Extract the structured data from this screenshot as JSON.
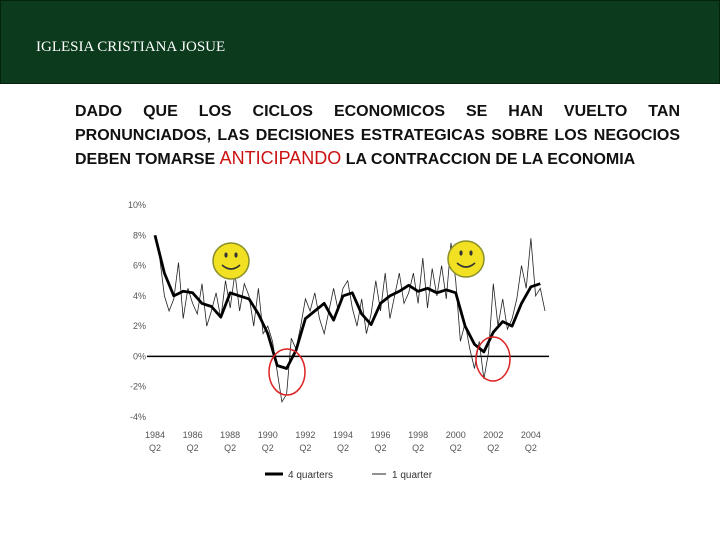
{
  "header": {
    "title": "IGLESIA CRISTIANA JOSUE",
    "bg_color": "#0b3a1c"
  },
  "body_text": {
    "part1": "DADO QUE LOS CICLOS ECONOMICOS SE HAN VUELTO TAN PRONUNCIADOS, LAS DECISIONES ESTRATEGICAS SOBRE LOS NEGOCIOS DEBEN TOMARSE ",
    "highlight": "ANTICIPANDO",
    "part2": " LA CONTRACCION DE LA ECONOMIA",
    "highlight_color": "#cc1111"
  },
  "chart_data": {
    "type": "line",
    "title": "",
    "xlabel": "",
    "ylabel": "",
    "ylim": [
      -4,
      10
    ],
    "xlim": [
      1984,
      2004.75
    ],
    "y_ticks": [
      "10%",
      "8%",
      "6%",
      "4%",
      "2%",
      "0%",
      "-2%",
      "-4%"
    ],
    "y_tick_values": [
      10,
      8,
      6,
      4,
      2,
      0,
      -2,
      -4
    ],
    "x_tick_years": [
      "1984",
      "1986",
      "1988",
      "1990",
      "1992",
      "1994",
      "1996",
      "1998",
      "2000",
      "2002",
      "2004"
    ],
    "x_tick_quarters": [
      "Q2",
      "Q2",
      "Q2",
      "Q2",
      "Q2",
      "Q2",
      "Q2",
      "Q2",
      "Q2",
      "Q2",
      "Q2"
    ],
    "x_tick_values": [
      1984,
      1986,
      1988,
      1990,
      1992,
      1994,
      1996,
      1998,
      2000,
      2002,
      2004
    ],
    "legend": [
      {
        "label": "4 quarters",
        "style": "thick"
      },
      {
        "label": "1 quarter",
        "style": "thin"
      }
    ],
    "series": [
      {
        "name": "4 quarters",
        "x": [
          1984,
          1984.5,
          1985,
          1985.5,
          1986,
          1986.5,
          1987,
          1987.5,
          1988,
          1988.5,
          1989,
          1989.5,
          1990,
          1990.5,
          1991,
          1991.5,
          1992,
          1992.5,
          1993,
          1993.5,
          1994,
          1994.5,
          1995,
          1995.5,
          1996,
          1996.5,
          1997,
          1997.5,
          1998,
          1998.5,
          1999,
          1999.5,
          2000,
          2000.5,
          2001,
          2001.5,
          2002,
          2002.5,
          2003,
          2003.5,
          2004,
          2004.5
        ],
        "values": [
          8,
          5.5,
          4,
          4.3,
          4.2,
          3.5,
          3.3,
          2.6,
          4.2,
          4.0,
          3.8,
          2.8,
          1.5,
          -0.6,
          -0.8,
          0.4,
          2.5,
          3.0,
          3.5,
          2.4,
          4.0,
          4.2,
          2.8,
          2.1,
          3.5,
          4.0,
          4.3,
          4.7,
          4.3,
          4.5,
          4.2,
          4.4,
          4.2,
          2.0,
          0.8,
          0.3,
          1.6,
          2.3,
          2.0,
          3.5,
          4.6,
          4.8
        ]
      },
      {
        "name": "1 quarter",
        "x": [
          1984,
          1984.25,
          1984.5,
          1984.75,
          1985,
          1985.25,
          1985.5,
          1985.75,
          1986,
          1986.25,
          1986.5,
          1986.75,
          1987,
          1987.25,
          1987.5,
          1987.75,
          1988,
          1988.25,
          1988.5,
          1988.75,
          1989,
          1989.25,
          1989.5,
          1989.75,
          1990,
          1990.25,
          1990.5,
          1990.75,
          1991,
          1991.25,
          1991.5,
          1991.75,
          1992,
          1992.25,
          1992.5,
          1992.75,
          1993,
          1993.25,
          1993.5,
          1993.75,
          1994,
          1994.25,
          1994.5,
          1994.75,
          1995,
          1995.25,
          1995.5,
          1995.75,
          1996,
          1996.25,
          1996.5,
          1996.75,
          1997,
          1997.25,
          1997.5,
          1997.75,
          1998,
          1998.25,
          1998.5,
          1998.75,
          1999,
          1999.25,
          1999.5,
          1999.75,
          2000,
          2000.25,
          2000.5,
          2000.75,
          2001,
          2001.25,
          2001.5,
          2001.75,
          2002,
          2002.25,
          2002.5,
          2002.75,
          2003,
          2003.25,
          2003.5,
          2003.75,
          2004,
          2004.25,
          2004.5,
          2004.75
        ],
        "values": [
          8.0,
          6.5,
          4.0,
          3.0,
          3.8,
          6.2,
          2.5,
          4.5,
          3.5,
          2.8,
          4.8,
          2.0,
          3.0,
          4.2,
          2.5,
          5.0,
          3.2,
          5.5,
          3.0,
          4.8,
          4.0,
          2.0,
          4.5,
          1.5,
          2.0,
          1.0,
          -1.0,
          -3.0,
          -2.5,
          1.2,
          0.5,
          2.0,
          3.8,
          3.0,
          4.2,
          2.5,
          1.5,
          3.0,
          4.5,
          3.0,
          4.5,
          5.0,
          3.2,
          2.0,
          3.8,
          1.5,
          2.8,
          5.0,
          3.0,
          5.5,
          2.5,
          4.0,
          5.5,
          3.5,
          4.2,
          5.5,
          3.5,
          6.5,
          3.2,
          5.8,
          4.0,
          6.0,
          3.8,
          7.5,
          5.0,
          1.0,
          2.2,
          0.5,
          -0.8,
          1.0,
          -1.5,
          0.3,
          4.8,
          2.0,
          3.8,
          1.8,
          2.5,
          3.8,
          6.0,
          4.5,
          7.8,
          4.0,
          4.5,
          3.0
        ]
      }
    ],
    "marker_colors": {
      "circle": "#dd2222",
      "smiley_face": "#f2e022",
      "smiley_edge": "#8a8f2a"
    }
  }
}
